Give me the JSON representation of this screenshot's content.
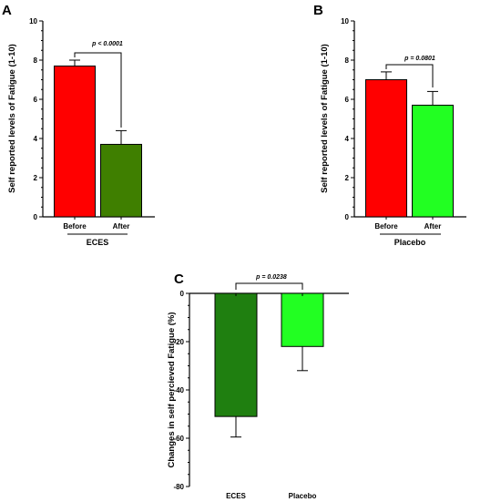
{
  "chart_data": [
    {
      "type": "bar",
      "panel": "A",
      "ylabel": "Self reported levels of Fatigue (1-10)",
      "ylim": [
        0,
        10
      ],
      "yticks": [
        "0",
        "2",
        "4",
        "6",
        "8",
        "10"
      ],
      "categories": [
        "Before",
        "After"
      ],
      "values": [
        7.7,
        3.7
      ],
      "errors": [
        0.3,
        0.7
      ],
      "colors": [
        "#ff0000",
        "#3f7f00"
      ],
      "group_label": "ECES",
      "comparison": {
        "from": 0,
        "to": 1,
        "label": "p < 0.0001"
      }
    },
    {
      "type": "bar",
      "panel": "B",
      "ylabel": "Self reported levels of Fatigue (1-10)",
      "ylim": [
        0,
        10
      ],
      "yticks": [
        "0",
        "2",
        "4",
        "6",
        "8",
        "10"
      ],
      "categories": [
        "Before",
        "After"
      ],
      "values": [
        7.0,
        5.7
      ],
      "errors": [
        0.4,
        0.7
      ],
      "colors": [
        "#ff0000",
        "#22ff22"
      ],
      "group_label": "Placebo",
      "comparison": {
        "from": 0,
        "to": 1,
        "label": "p = 0.0801"
      }
    },
    {
      "type": "bar",
      "panel": "C",
      "ylabel": "Changes in self percieved Fatigue (%)",
      "ylim": [
        -80,
        0
      ],
      "yticks": [
        "0",
        "-20",
        "-40",
        "-60",
        "-80"
      ],
      "categories": [
        "ECES",
        "Placebo"
      ],
      "values": [
        -51,
        -22
      ],
      "errors": [
        8.5,
        10
      ],
      "colors": [
        "#1f7f10",
        "#22ff22"
      ],
      "group_label": "",
      "comparison": {
        "from": 0,
        "to": 1,
        "label": "p = 0.0238"
      }
    }
  ]
}
